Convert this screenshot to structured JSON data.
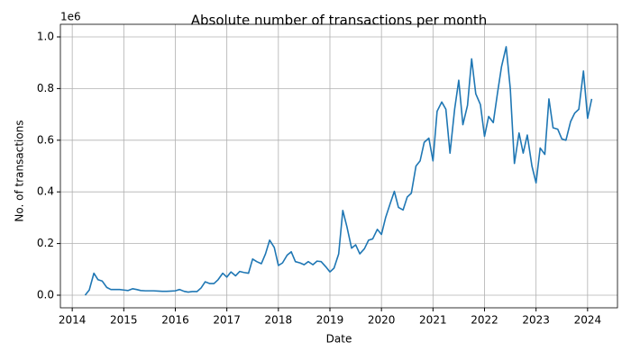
{
  "chart_data": {
    "type": "line",
    "title": "Absolute number of transactions per month",
    "x_label": "Date",
    "y_label": "No. of transactions",
    "y_offset_label": "1e6",
    "x": [
      2014.25,
      2014.33,
      2014.42,
      2014.5,
      2014.58,
      2014.67,
      2014.75,
      2014.83,
      2014.92,
      2015.0,
      2015.08,
      2015.17,
      2015.25,
      2015.33,
      2015.42,
      2015.5,
      2015.58,
      2015.67,
      2015.75,
      2015.83,
      2015.92,
      2016.0,
      2016.08,
      2016.17,
      2016.25,
      2016.33,
      2016.42,
      2016.5,
      2016.58,
      2016.67,
      2016.75,
      2016.83,
      2016.92,
      2017.0,
      2017.08,
      2017.17,
      2017.25,
      2017.33,
      2017.42,
      2017.5,
      2017.58,
      2017.67,
      2017.75,
      2017.83,
      2017.92,
      2018.0,
      2018.08,
      2018.17,
      2018.25,
      2018.33,
      2018.42,
      2018.5,
      2018.58,
      2018.67,
      2018.75,
      2018.83,
      2018.92,
      2019.0,
      2019.08,
      2019.17,
      2019.25,
      2019.33,
      2019.42,
      2019.5,
      2019.58,
      2019.67,
      2019.75,
      2019.83,
      2019.92,
      2020.0,
      2020.08,
      2020.17,
      2020.25,
      2020.33,
      2020.42,
      2020.5,
      2020.58,
      2020.67,
      2020.75,
      2020.83,
      2020.92,
      2021.0,
      2021.08,
      2021.17,
      2021.25,
      2021.33,
      2021.42,
      2021.5,
      2021.58,
      2021.67,
      2021.75,
      2021.83,
      2021.92,
      2022.0,
      2022.08,
      2022.17,
      2022.25,
      2022.33,
      2022.42,
      2022.5,
      2022.58,
      2022.67,
      2022.75,
      2022.83,
      2022.92,
      2023.0,
      2023.08,
      2023.17,
      2023.25,
      2023.33,
      2023.42,
      2023.5,
      2023.58,
      2023.67,
      2023.75,
      2023.83,
      2023.92,
      2024.0,
      2024.08
    ],
    "series": [
      {
        "color": "#1f77b4",
        "values": [
          0,
          20000,
          85000,
          60000,
          55000,
          30000,
          22000,
          22000,
          22000,
          20000,
          18000,
          25000,
          22000,
          18000,
          17000,
          17000,
          17000,
          16000,
          15000,
          15000,
          16000,
          17000,
          22000,
          15000,
          12000,
          14000,
          14000,
          28000,
          52000,
          45000,
          45000,
          60000,
          85000,
          70000,
          90000,
          75000,
          92000,
          88000,
          85000,
          140000,
          130000,
          122000,
          160000,
          213000,
          185000,
          115000,
          125000,
          155000,
          168000,
          130000,
          125000,
          118000,
          130000,
          118000,
          132000,
          130000,
          110000,
          90000,
          105000,
          160000,
          328000,
          265000,
          182000,
          195000,
          160000,
          180000,
          213000,
          218000,
          255000,
          235000,
          300000,
          355000,
          402000,
          340000,
          330000,
          380000,
          395000,
          500000,
          520000,
          592000,
          608000,
          520000,
          712000,
          748000,
          720000,
          550000,
          720000,
          832000,
          660000,
          735000,
          915000,
          780000,
          738000,
          615000,
          692000,
          668000,
          780000,
          885000,
          962000,
          800000,
          510000,
          628000,
          550000,
          620000,
          500000,
          435000,
          570000,
          545000,
          760000,
          648000,
          643000,
          605000,
          600000,
          672000,
          705000,
          720000,
          868000,
          685000,
          760000
        ]
      }
    ],
    "xlim": [
      2013.77,
      2024.58
    ],
    "xticks": [
      2014,
      2015,
      2016,
      2017,
      2018,
      2019,
      2020,
      2021,
      2022,
      2023,
      2024
    ],
    "ylim": [
      -48800,
      1048800
    ],
    "yticks": [
      {
        "value": 0,
        "label": "0.0"
      },
      {
        "value": 200000,
        "label": "0.2"
      },
      {
        "value": 400000,
        "label": "0.4"
      },
      {
        "value": 600000,
        "label": "0.6"
      },
      {
        "value": 800000,
        "label": "0.8"
      },
      {
        "value": 1000000,
        "label": "1.0"
      }
    ],
    "grid": true
  }
}
